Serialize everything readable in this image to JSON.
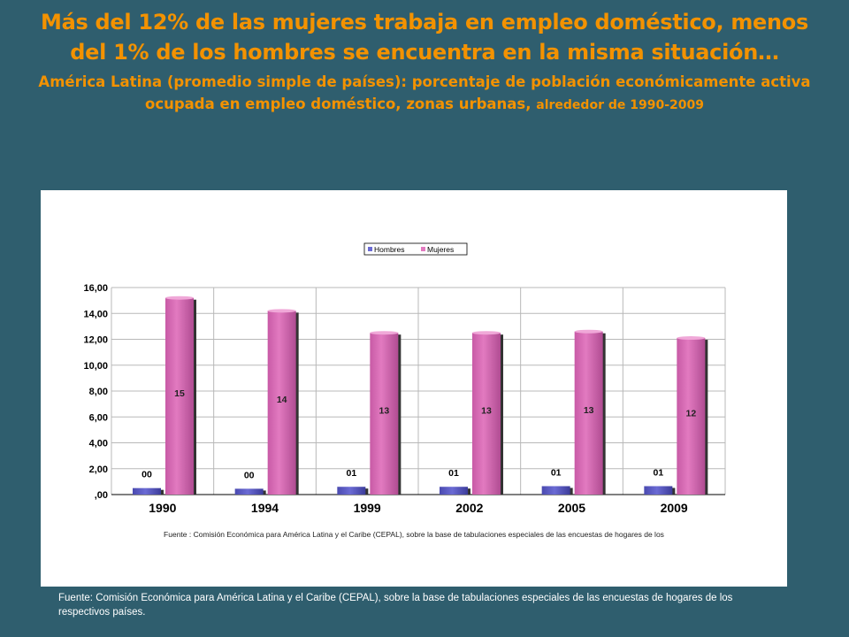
{
  "title": "Más del 12% de las mujeres trabaja en empleo doméstico, menos del 1% de los hombres se encuentra en la misma situación…",
  "subtitle_main": "América Latina (promedio simple de países): porcentaje de población económicamente activa ocupada en empleo doméstico, zonas urbanas,",
  "subtitle_small": "alrededor de 1990-2009",
  "chart_source": "Fuente : Comisión Económica para América Latina y el Caribe (CEPAL), sobre la base de tabulaciones especiales de las encuestas de hogares de los",
  "footer_source": "Fuente: Comisión Económica para América Latina y el Caribe (CEPAL), sobre la base de tabulaciones especiales de las encuestas de hogares de los respectivos países.",
  "colors": {
    "hombres": "#6b6bd4",
    "mujeres": "#e27ac0",
    "title": "#f39200",
    "background": "#2f5e6e"
  },
  "chart_data": {
    "type": "bar",
    "categories": [
      "1990",
      "1994",
      "1999",
      "2002",
      "2005",
      "2009"
    ],
    "series": [
      {
        "name": "Hombres",
        "values": [
          0.5,
          0.45,
          0.6,
          0.6,
          0.65,
          0.65
        ],
        "labels": [
          "00",
          "00",
          "01",
          "01",
          "01",
          "01"
        ]
      },
      {
        "name": "Mujeres",
        "values": [
          15.2,
          14.2,
          12.5,
          12.5,
          12.6,
          12.1
        ],
        "labels": [
          "15",
          "14",
          "13",
          "13",
          "13",
          "12"
        ]
      }
    ],
    "ylim": [
      0,
      16
    ],
    "yticks": [
      0,
      2,
      4,
      6,
      8,
      10,
      12,
      14,
      16
    ],
    "ytick_labels": [
      ",00",
      "2,00",
      "4,00",
      "6,00",
      "8,00",
      "10,00",
      "12,00",
      "14,00",
      "16,00"
    ],
    "legend": "top-center",
    "grid": true
  }
}
